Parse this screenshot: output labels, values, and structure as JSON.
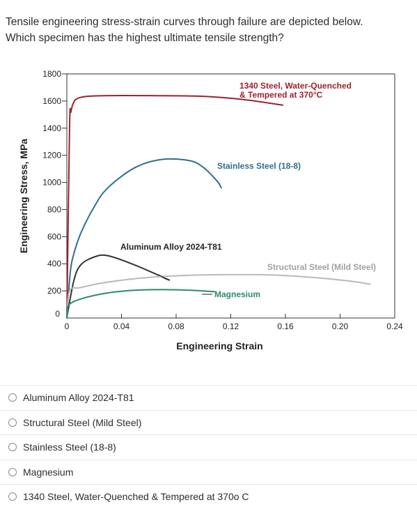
{
  "question": {
    "line1": "Tensile engineering stress-strain curves through failure are depicted below.",
    "line2": "Which specimen has the highest ultimate tensile strength?"
  },
  "options": [
    {
      "label": "Aluminum Alloy 2024-T81",
      "selected": false
    },
    {
      "label": "Structural Steel (Mild Steel)",
      "selected": false
    },
    {
      "label": "Stainless Steel (18-8)",
      "selected": false
    },
    {
      "label": "Magnesium",
      "selected": false
    },
    {
      "label": "1340 Steel, Water-Quenched & Tempered at 370o C",
      "selected": false
    }
  ],
  "chart_data": {
    "type": "line",
    "xlabel": "Engineering Strain",
    "ylabel": "Engineering Stress, MPa",
    "xlim": [
      0,
      0.24
    ],
    "ylim": [
      0,
      1800
    ],
    "xticks": [
      "0",
      "0.04",
      "0.08",
      "0.12",
      "0.16",
      "0.20",
      "0.24"
    ],
    "yticks": [
      "0",
      "200",
      "400",
      "600",
      "800",
      "1000",
      "1200",
      "1400",
      "1600",
      "1800"
    ],
    "grid": false,
    "series": [
      {
        "name": "1340 Steel, Water-Quenched & Tempered at 370°C",
        "label_lines": [
          "1340 Steel, Water-Quenched",
          "& Tempered at 370°C"
        ],
        "color": "#9b2230",
        "x": [
          0,
          0.002,
          0.003,
          0.005,
          0.008,
          0.015,
          0.03,
          0.06,
          0.1,
          0.13,
          0.158
        ],
        "y": [
          0,
          1400,
          1520,
          1590,
          1620,
          1635,
          1640,
          1640,
          1635,
          1610,
          1570
        ]
      },
      {
        "name": "Stainless Steel (18-8)",
        "label_lines": [
          "Stainless Steel (18-8)"
        ],
        "color": "#2f6f8c",
        "x": [
          0,
          0.002,
          0.004,
          0.01,
          0.02,
          0.03,
          0.05,
          0.07,
          0.09,
          0.1,
          0.11,
          0.113
        ],
        "y": [
          0,
          280,
          430,
          620,
          820,
          960,
          1110,
          1170,
          1160,
          1110,
          1010,
          960
        ]
      },
      {
        "name": "Aluminum Alloy 2024-T81",
        "label_lines": [
          "Aluminum Alloy 2024-T81"
        ],
        "color": "#333333",
        "x": [
          0,
          0.005,
          0.01,
          0.02,
          0.03,
          0.05,
          0.075
        ],
        "y": [
          0,
          270,
          390,
          450,
          460,
          390,
          280
        ]
      },
      {
        "name": "Structural Steel (Mild Steel)",
        "label_lines": [
          "Structural Steel (Mild Steel)"
        ],
        "color": "#b9b9b9",
        "x": [
          0,
          0.002,
          0.01,
          0.03,
          0.06,
          0.09,
          0.12,
          0.15,
          0.18,
          0.205,
          0.222
        ],
        "y": [
          0,
          200,
          225,
          265,
          300,
          315,
          320,
          318,
          300,
          275,
          250
        ]
      },
      {
        "name": "Magnesium",
        "label_lines": [
          "Magnesium"
        ],
        "color": "#2c8a72",
        "x": [
          0,
          0.001,
          0.01,
          0.03,
          0.05,
          0.07,
          0.09,
          0.108
        ],
        "y": [
          0,
          90,
          140,
          185,
          205,
          210,
          205,
          195
        ]
      }
    ]
  }
}
